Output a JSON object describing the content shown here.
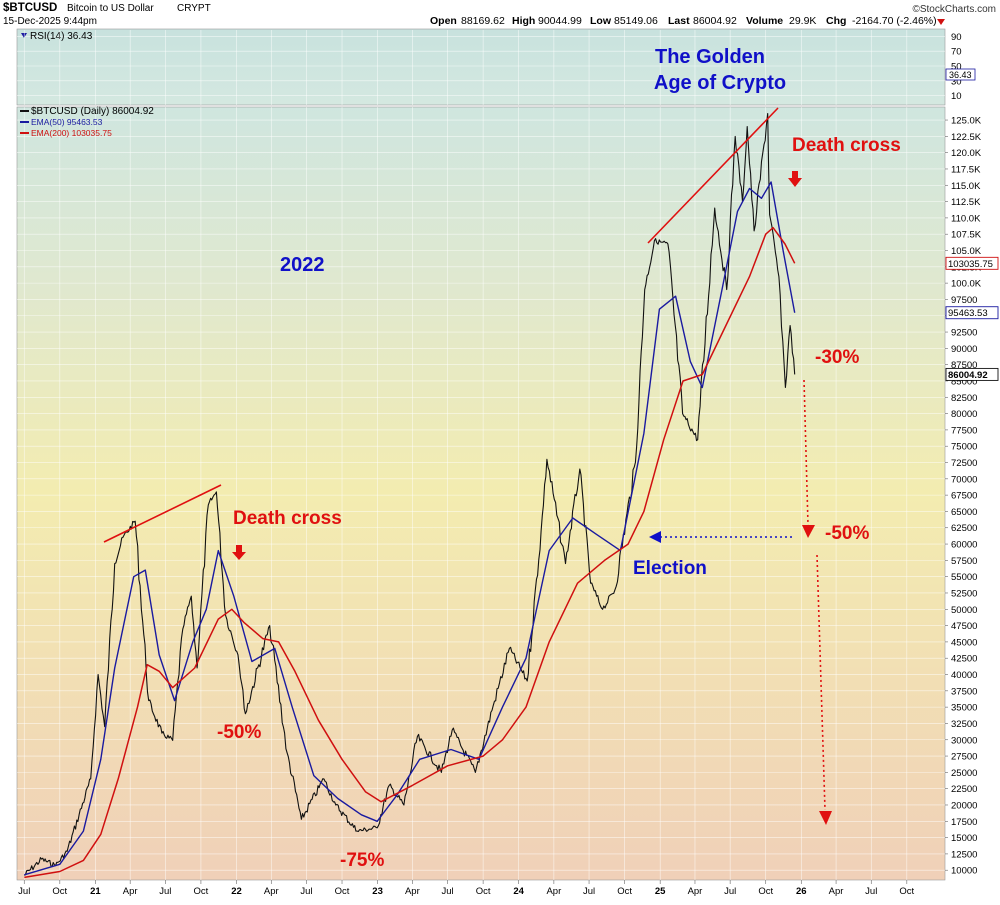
{
  "header": {
    "symbol": "$BTCUSD",
    "name": "Bitcoin to US Dollar",
    "exchange": "CRYPT",
    "datetime": "15-Dec-2025 9:44pm",
    "open_label": "Open",
    "open": "88169.62",
    "high_label": "High",
    "high": "90044.99",
    "low_label": "Low",
    "low": "85149.06",
    "last_label": "Last",
    "last": "86004.92",
    "volume_label": "Volume",
    "volume": "29.9K",
    "chg_label": "Chg",
    "chg": "-2164.70 (-2.46%)",
    "brand": "©StockCharts.com"
  },
  "rsi_panel": {
    "label": "RSI(14) 36.43",
    "value": 36.43,
    "value_label": "36.43",
    "ticks": [
      "90",
      "70",
      "50",
      "30",
      "10"
    ]
  },
  "legend": [
    {
      "label": "$BTCUSD (Daily) 86004.92",
      "color": "#111111"
    },
    {
      "label": "EMA(50) 95463.53",
      "color": "#1a1aa0"
    },
    {
      "label": "EMA(200) 103035.75",
      "color": "#d01010"
    }
  ],
  "price_labels": [
    {
      "value": 103035.75,
      "text": "103035.75",
      "color": "#d01010"
    },
    {
      "value": 95463.53,
      "text": "95463.53",
      "color": "#1a1aa0"
    },
    {
      "value": 86004.92,
      "text": "86004.92",
      "color": "#111111"
    }
  ],
  "annotations": {
    "golden_line1": "The Golden",
    "golden_line2": "Age of Crypto",
    "year_2022": "2022",
    "death_cross_1": "Death cross",
    "death_cross_2": "Death cross",
    "pct_50_2022": "-50%",
    "pct_75": "-75%",
    "election": "Election",
    "pct_30": "-30%",
    "pct_50_future": "-50%"
  },
  "x_axis_labels": [
    "Jul",
    "Oct",
    "21",
    "Apr",
    "Jul",
    "Oct",
    "22",
    "Apr",
    "Jul",
    "Oct",
    "23",
    "Apr",
    "Jul",
    "Oct",
    "24",
    "Apr",
    "Jul",
    "Oct",
    "25",
    "Apr",
    "Jul",
    "Oct",
    "26",
    "Apr",
    "Jul",
    "Oct"
  ],
  "colors": {
    "price": "#111111",
    "ema50": "#1a1aa0",
    "ema200": "#d01010",
    "annotation_red": "#e01010",
    "annotation_blue": "#1010c8",
    "bg_top": "#cfe6df",
    "bg_mid": "#f3ecb0",
    "bg_bottom": "#f0d0b8"
  },
  "chart_data": {
    "type": "line",
    "title": "$BTCUSD Bitcoin to US Dollar CRYPT",
    "x_start": "2020-07",
    "x_end": "2026-12",
    "ylim": [
      8500,
      127000
    ],
    "y_ticks": [
      10000,
      12500,
      15000,
      17500,
      20000,
      22500,
      25000,
      27500,
      30000,
      32500,
      35000,
      37500,
      40000,
      42500,
      45000,
      47500,
      50000,
      52500,
      55000,
      57500,
      60000,
      62500,
      65000,
      67500,
      70000,
      72500,
      75000,
      77500,
      80000,
      82500,
      85000,
      87500,
      90000,
      92500,
      95000,
      97500,
      100000,
      102500,
      105000,
      107500,
      110000,
      112500,
      115000,
      117500,
      120000,
      122500,
      125000
    ],
    "y_tick_labels": [
      "10000",
      "12500",
      "15000",
      "17500",
      "20000",
      "22500",
      "25000",
      "27500",
      "30000",
      "32500",
      "35000",
      "37500",
      "40000",
      "42500",
      "45000",
      "47500",
      "50000",
      "52500",
      "55000",
      "57500",
      "60000",
      "62500",
      "65000",
      "67500",
      "70000",
      "72500",
      "75000",
      "77500",
      "80000",
      "82500",
      "85000",
      "87500",
      "90000",
      "92500",
      "95000",
      "97500",
      "100.0K",
      "102.5K",
      "105.0K",
      "107.5K",
      "110.0K",
      "112.5K",
      "115.0K",
      "117.5K",
      "120.0K",
      "122.5K",
      "125.0K"
    ],
    "series": [
      {
        "name": "$BTCUSD (Daily)",
        "points": [
          [
            "2020-07-01",
            9200
          ],
          [
            "2020-08-15",
            11700
          ],
          [
            "2020-09-20",
            10700
          ],
          [
            "2020-10-20",
            12900
          ],
          [
            "2020-11-20",
            18500
          ],
          [
            "2020-12-20",
            24000
          ],
          [
            "2021-01-08",
            40000
          ],
          [
            "2021-01-25",
            32000
          ],
          [
            "2021-02-20",
            57000
          ],
          [
            "2021-03-13",
            61000
          ],
          [
            "2021-04-14",
            63500
          ],
          [
            "2021-05-19",
            36000
          ],
          [
            "2021-06-22",
            31000
          ],
          [
            "2021-07-20",
            29900
          ],
          [
            "2021-08-15",
            47000
          ],
          [
            "2021-09-06",
            52000
          ],
          [
            "2021-09-21",
            41000
          ],
          [
            "2021-10-20",
            66000
          ],
          [
            "2021-11-10",
            68000
          ],
          [
            "2021-12-04",
            49000
          ],
          [
            "2022-01-05",
            43000
          ],
          [
            "2022-01-24",
            34000
          ],
          [
            "2022-03-28",
            47500
          ],
          [
            "2022-05-12",
            28000
          ],
          [
            "2022-06-18",
            17800
          ],
          [
            "2022-08-15",
            24000
          ],
          [
            "2022-09-15",
            20000
          ],
          [
            "2022-11-09",
            16000
          ],
          [
            "2022-12-31",
            16500
          ],
          [
            "2023-01-31",
            23000
          ],
          [
            "2023-03-10",
            20000
          ],
          [
            "2023-04-14",
            30500
          ],
          [
            "2023-06-15",
            25000
          ],
          [
            "2023-07-13",
            31500
          ],
          [
            "2023-09-11",
            25000
          ],
          [
            "2023-10-24",
            34500
          ],
          [
            "2023-12-08",
            44000
          ],
          [
            "2024-01-23",
            39000
          ],
          [
            "2024-02-28",
            62000
          ],
          [
            "2024-03-14",
            73000
          ],
          [
            "2024-05-01",
            57000
          ],
          [
            "2024-06-07",
            71500
          ],
          [
            "2024-07-05",
            54000
          ],
          [
            "2024-08-05",
            50000
          ],
          [
            "2024-09-06",
            53000
          ],
          [
            "2024-10-29",
            72500
          ],
          [
            "2024-11-22",
            99000
          ],
          [
            "2024-12-17",
            106500
          ],
          [
            "2025-01-21",
            106000
          ],
          [
            "2025-02-28",
            80000
          ],
          [
            "2025-04-08",
            76000
          ],
          [
            "2025-05-22",
            111500
          ],
          [
            "2025-06-22",
            99000
          ],
          [
            "2025-07-14",
            122500
          ],
          [
            "2025-08-02",
            112500
          ],
          [
            "2025-08-14",
            124000
          ],
          [
            "2025-09-01",
            108000
          ],
          [
            "2025-10-06",
            126000
          ],
          [
            "2025-10-11",
            110500
          ],
          [
            "2025-11-04",
            101000
          ],
          [
            "2025-11-21",
            84000
          ],
          [
            "2025-12-03",
            93500
          ],
          [
            "2025-12-15",
            86004.92
          ]
        ]
      },
      {
        "name": "EMA(50)",
        "points": [
          [
            "2020-07-01",
            9300
          ],
          [
            "2020-10-01",
            10900
          ],
          [
            "2020-12-01",
            16000
          ],
          [
            "2021-01-15",
            27000
          ],
          [
            "2021-02-20",
            41000
          ],
          [
            "2021-04-10",
            55000
          ],
          [
            "2021-05-10",
            56000
          ],
          [
            "2021-06-15",
            43000
          ],
          [
            "2021-07-25",
            36000
          ],
          [
            "2021-09-10",
            45000
          ],
          [
            "2021-10-15",
            50000
          ],
          [
            "2021-11-15",
            59000
          ],
          [
            "2021-12-25",
            52000
          ],
          [
            "2022-02-10",
            42000
          ],
          [
            "2022-04-10",
            44000
          ],
          [
            "2022-05-25",
            35000
          ],
          [
            "2022-07-20",
            24500
          ],
          [
            "2022-09-20",
            21000
          ],
          [
            "2022-11-20",
            18500
          ],
          [
            "2022-12-31",
            17500
          ],
          [
            "2023-02-20",
            21500
          ],
          [
            "2023-04-20",
            27000
          ],
          [
            "2023-07-10",
            28500
          ],
          [
            "2023-09-20",
            27000
          ],
          [
            "2023-11-20",
            35000
          ],
          [
            "2024-01-20",
            42500
          ],
          [
            "2024-03-20",
            59000
          ],
          [
            "2024-05-20",
            64000
          ],
          [
            "2024-07-20",
            61500
          ],
          [
            "2024-09-20",
            59000
          ],
          [
            "2024-11-20",
            77000
          ],
          [
            "2024-12-30",
            96000
          ],
          [
            "2025-02-10",
            98000
          ],
          [
            "2025-03-20",
            88000
          ],
          [
            "2025-04-20",
            84000
          ],
          [
            "2025-06-10",
            99000
          ],
          [
            "2025-07-20",
            111000
          ],
          [
            "2025-08-20",
            114500
          ],
          [
            "2025-09-20",
            113000
          ],
          [
            "2025-10-15",
            115500
          ],
          [
            "2025-11-15",
            105000
          ],
          [
            "2025-12-15",
            95463.53
          ]
        ]
      },
      {
        "name": "EMA(200)",
        "points": [
          [
            "2020-07-01",
            8900
          ],
          [
            "2020-10-01",
            9800
          ],
          [
            "2020-12-01",
            11500
          ],
          [
            "2021-01-15",
            15500
          ],
          [
            "2021-03-01",
            24000
          ],
          [
            "2021-04-20",
            35000
          ],
          [
            "2021-05-15",
            41500
          ],
          [
            "2021-06-15",
            40500
          ],
          [
            "2021-07-20",
            38000
          ],
          [
            "2021-09-15",
            41000
          ],
          [
            "2021-11-15",
            48500
          ],
          [
            "2021-12-20",
            50000
          ],
          [
            "2022-01-20",
            48000
          ],
          [
            "2022-03-10",
            45500
          ],
          [
            "2022-04-20",
            45000
          ],
          [
            "2022-06-01",
            40500
          ],
          [
            "2022-08-01",
            33000
          ],
          [
            "2022-10-01",
            27000
          ],
          [
            "2022-12-01",
            22000
          ],
          [
            "2023-01-10",
            20500
          ],
          [
            "2023-04-01",
            23000
          ],
          [
            "2023-07-01",
            26000
          ],
          [
            "2023-10-01",
            27500
          ],
          [
            "2023-11-20",
            30000
          ],
          [
            "2024-01-20",
            35000
          ],
          [
            "2024-03-20",
            45000
          ],
          [
            "2024-06-01",
            54000
          ],
          [
            "2024-08-10",
            57500
          ],
          [
            "2024-10-10",
            60000
          ],
          [
            "2024-11-20",
            65000
          ],
          [
            "2025-01-10",
            76000
          ],
          [
            "2025-03-01",
            85000
          ],
          [
            "2025-04-20",
            86000
          ],
          [
            "2025-06-20",
            93500
          ],
          [
            "2025-08-20",
            101000
          ],
          [
            "2025-10-01",
            107500
          ],
          [
            "2025-10-20",
            108500
          ],
          [
            "2025-11-20",
            106000
          ],
          [
            "2025-12-15",
            103035.75
          ]
        ]
      }
    ]
  }
}
